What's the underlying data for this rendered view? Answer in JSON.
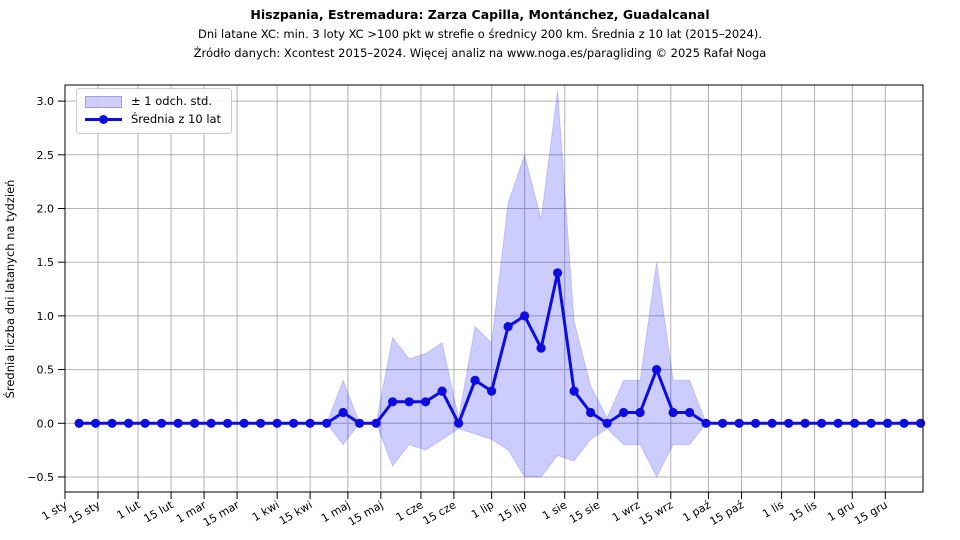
{
  "chart_data": {
    "type": "line",
    "title": "Hiszpania, Estremadura: Zarza Capilla, Montánchez, Guadalcanal",
    "subtitle": "Dni latane XC: min. 3 loty XC >100 pkt w strefie o średnicy 200 km. Średnia z 10 lat (2015–2024).",
    "source": "Źródło danych: Xcontest 2015–2024. Więcej analiz na www.noga.es/paragliding © 2025 Rafał Noga",
    "ylabel": "Średnia liczba dni latanych na tydzień",
    "legend": [
      {
        "label": "± 1 odch. std.",
        "type": "band"
      },
      {
        "label": "Średnia z 10 lat",
        "type": "line-marker"
      }
    ],
    "legend_position": "upper left",
    "grid": true,
    "x_unit": "tydzień roku (52 punkty)",
    "week_days": [
      7,
      14,
      21,
      28,
      35,
      42,
      49,
      56,
      63,
      70,
      77,
      84,
      91,
      98,
      105,
      112,
      119,
      126,
      133,
      140,
      147,
      154,
      161,
      168,
      175,
      182,
      189,
      196,
      203,
      210,
      217,
      224,
      231,
      238,
      245,
      252,
      259,
      266,
      273,
      280,
      287,
      294,
      301,
      308,
      315,
      322,
      329,
      336,
      343,
      350,
      357,
      364
    ],
    "mean": [
      0,
      0,
      0,
      0,
      0,
      0,
      0,
      0,
      0,
      0,
      0,
      0,
      0,
      0,
      0,
      0,
      0.1,
      0,
      0,
      0.2,
      0.2,
      0.2,
      0.3,
      0,
      0.4,
      0.3,
      0.9,
      1.0,
      0.7,
      1.4,
      0.3,
      0.1,
      0,
      0.1,
      0.1,
      0.5,
      0.1,
      0.1,
      0,
      0,
      0,
      0,
      0,
      0,
      0,
      0,
      0,
      0,
      0,
      0,
      0,
      0
    ],
    "std": [
      0,
      0,
      0,
      0,
      0,
      0,
      0,
      0,
      0,
      0,
      0,
      0,
      0,
      0,
      0,
      0,
      0.3,
      0,
      0,
      0.6,
      0.4,
      0.45,
      0.45,
      0.05,
      0.5,
      0.45,
      1.15,
      1.5,
      1.2,
      1.7,
      0.65,
      0.25,
      0.05,
      0.3,
      0.3,
      1.0,
      0.3,
      0.3,
      0,
      0,
      0,
      0,
      0,
      0,
      0,
      0,
      0,
      0,
      0,
      0,
      0,
      0
    ],
    "x_ticks": [
      {
        "label": "1 sty",
        "day": 1
      },
      {
        "label": "15 sty",
        "day": 15
      },
      {
        "label": "1 lut",
        "day": 32
      },
      {
        "label": "15 lut",
        "day": 46
      },
      {
        "label": "1 mar",
        "day": 60
      },
      {
        "label": "15 mar",
        "day": 74
      },
      {
        "label": "1 kwi",
        "day": 91
      },
      {
        "label": "15 kwi",
        "day": 105
      },
      {
        "label": "1 maj",
        "day": 121
      },
      {
        "label": "15 maj",
        "day": 135
      },
      {
        "label": "1 cze",
        "day": 152
      },
      {
        "label": "15 cze",
        "day": 166
      },
      {
        "label": "1 lip",
        "day": 182
      },
      {
        "label": "15 lip",
        "day": 196
      },
      {
        "label": "1 sie",
        "day": 213
      },
      {
        "label": "15 sie",
        "day": 227
      },
      {
        "label": "1 wrz",
        "day": 244
      },
      {
        "label": "15 wrz",
        "day": 258
      },
      {
        "label": "1 paź",
        "day": 274
      },
      {
        "label": "15 paź",
        "day": 288
      },
      {
        "label": "1 lis",
        "day": 305
      },
      {
        "label": "15 lis",
        "day": 319
      },
      {
        "label": "1 gru",
        "day": 335
      },
      {
        "label": "15 gru",
        "day": 349
      }
    ],
    "y_ticks": [
      -0.5,
      0.0,
      0.5,
      1.0,
      1.5,
      2.0,
      2.5,
      3.0
    ],
    "ylim": [
      -0.64,
      3.15
    ],
    "xlim_days": [
      1,
      365
    ],
    "colors": {
      "line": "#0d0de0",
      "band_fill": "#0000ff",
      "band_opacity": 0.2,
      "grid": "#b3b3b3",
      "spine": "#000000",
      "background": "#ffffff"
    }
  }
}
